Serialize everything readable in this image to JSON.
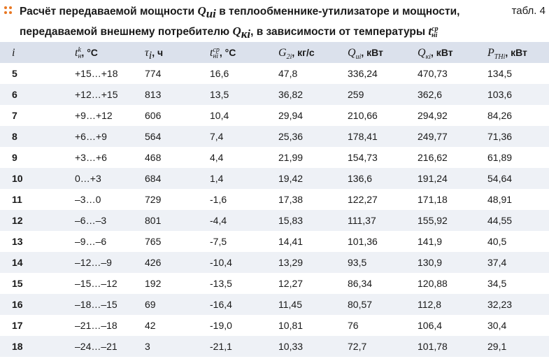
{
  "caption": {
    "text_a": "Расчёт передаваемой мощности ",
    "q_sym": "Q",
    "q_sub": "иi",
    "text_b": " в теплообменнике-утилизаторе и мощности,",
    "text_c": "передаваемой внешнему потребителю ",
    "qk_sym": "Q",
    "qk_sub": "кi",
    "text_d": ", в зависимости от температуры ",
    "t_sym": "t",
    "t_sub": "нi",
    "t_sup": "ср",
    "table_number": "табл. 4"
  },
  "headers": {
    "i": "i",
    "tk": {
      "sym": "t",
      "sub": "н",
      "sup": "k",
      "unit": ", °С"
    },
    "tau": {
      "sym": "τ",
      "sub": "i",
      "unit": ", ч"
    },
    "tav": {
      "sym": "t",
      "sub": "нi",
      "sup": "ср",
      "unit": ", °С"
    },
    "g2": {
      "sym": "G",
      "sub": "2i",
      "unit": ", кг/с"
    },
    "qu": {
      "sym": "Q",
      "sub": "иi",
      "unit": ", кВт"
    },
    "qk": {
      "sym": "Q",
      "sub": "кi",
      "unit": ", кВт"
    },
    "pth": {
      "sym": "P",
      "sub": "THi",
      "unit": ", кВт"
    }
  },
  "rows": [
    [
      "5",
      "+15…+18",
      "774",
      "16,6",
      "47,8",
      "336,24",
      "470,73",
      "134,5"
    ],
    [
      "6",
      "+12…+15",
      "813",
      "13,5",
      "36,82",
      "259",
      "362,6",
      "103,6"
    ],
    [
      "7",
      "+9…+12",
      "606",
      "10,4",
      "29,94",
      "210,66",
      "294,92",
      "84,26"
    ],
    [
      "8",
      "+6…+9",
      "564",
      "7,4",
      "25,36",
      "178,41",
      "249,77",
      "71,36"
    ],
    [
      "9",
      "+3…+6",
      "468",
      "4,4",
      "21,99",
      "154,73",
      "216,62",
      "61,89"
    ],
    [
      "10",
      "0…+3",
      "684",
      "1,4",
      "19,42",
      "136,6",
      "191,24",
      "54,64"
    ],
    [
      "11",
      "–3…0",
      "729",
      "-1,6",
      "17,38",
      "122,27",
      "171,18",
      "48,91"
    ],
    [
      "12",
      "–6…–3",
      "801",
      "-4,4",
      "15,83",
      "111,37",
      "155,92",
      "44,55"
    ],
    [
      "13",
      "–9…–6",
      "765",
      "-7,5",
      "14,41",
      "101,36",
      "141,9",
      "40,5"
    ],
    [
      "14",
      "–12…–9",
      "426",
      "-10,4",
      "13,29",
      "93,5",
      "130,9",
      "37,4"
    ],
    [
      "15",
      "–15…–12",
      "192",
      "-13,5",
      "12,27",
      "86,34",
      "120,88",
      "34,5"
    ],
    [
      "16",
      "–18…–15",
      "69",
      "-16,4",
      "11,45",
      "80,57",
      "112,8",
      "32,23"
    ],
    [
      "17",
      "–21…–18",
      "42",
      "-19,0",
      "10,81",
      "76",
      "106,4",
      "30,4"
    ],
    [
      "18",
      "–24…–21",
      "3",
      "-21,1",
      "10,33",
      "72,7",
      "101,78",
      "29,1"
    ]
  ],
  "colors": {
    "accent_dots": "#e87722",
    "header_bg": "#dbe1ec",
    "stripe_bg": "#eef1f6"
  }
}
